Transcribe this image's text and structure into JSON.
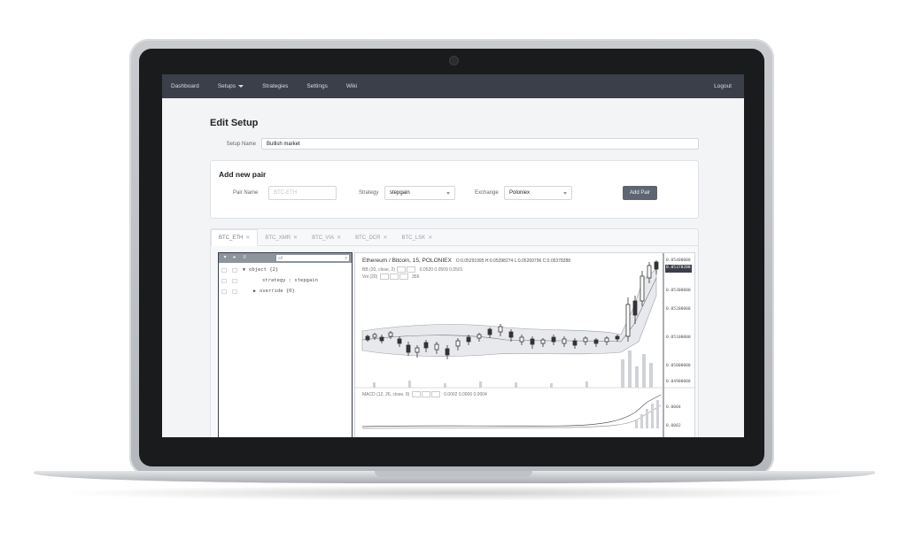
{
  "navbar": {
    "items": [
      {
        "label": "Dashboard"
      },
      {
        "label": "Setups"
      },
      {
        "label": "Strategies"
      },
      {
        "label": "Settings"
      },
      {
        "label": "Wiki"
      }
    ],
    "logout": "Logout"
  },
  "page": {
    "title": "Edit Setup",
    "setup_name_label": "Setup Name",
    "setup_name_value": "Bullish market"
  },
  "add_pair": {
    "title": "Add new pair",
    "pair_name_label": "Pair Name",
    "pair_name_placeholder": "BTC-ETH",
    "strategy_label": "Strategy",
    "strategy_value": "stepgain",
    "exchange_label": "Exchange",
    "exchange_value": "Poloniex",
    "button": "Add Pair"
  },
  "tabs": [
    {
      "label": "BTC_ETH",
      "close": "✕",
      "active": true
    },
    {
      "label": "BTC_XMR",
      "close": "✕",
      "active": false
    },
    {
      "label": "BTC_VIA",
      "close": "✕",
      "active": false
    },
    {
      "label": "BTC_DCR",
      "close": "✕",
      "active": false
    },
    {
      "label": "BTC_LSK",
      "close": "✕",
      "active": false
    }
  ],
  "json_editor": {
    "search_text": "all",
    "lines": [
      {
        "text": "object {2}"
      },
      {
        "text": "strategy : stepgain"
      },
      {
        "text": "override {0}"
      }
    ]
  },
  "chart": {
    "title": "Ethereum / Bitcoin, 15, POLONIEX",
    "ohlc": "O:0.05291995  H:0.05398274  L:0.05269796  C:0.05378288",
    "bb_label": "BB (20, close, 2)",
    "bb_values": "0.0520  0.0509  0.0501",
    "vol_label": "Vol (20)",
    "vol_values": "356",
    "macd_label": "MACD (12, 26, close, 9)",
    "macd_values": "0.0002  0.0006  0.0004",
    "price_ticks": [
      "0.05400000",
      "0.05300000",
      "0.05200000",
      "0.05100000",
      "0.05000000",
      "0.04900000"
    ],
    "macd_ticks": [
      "0.0004",
      "0.0002"
    ],
    "last_price": "0.05378288"
  }
}
